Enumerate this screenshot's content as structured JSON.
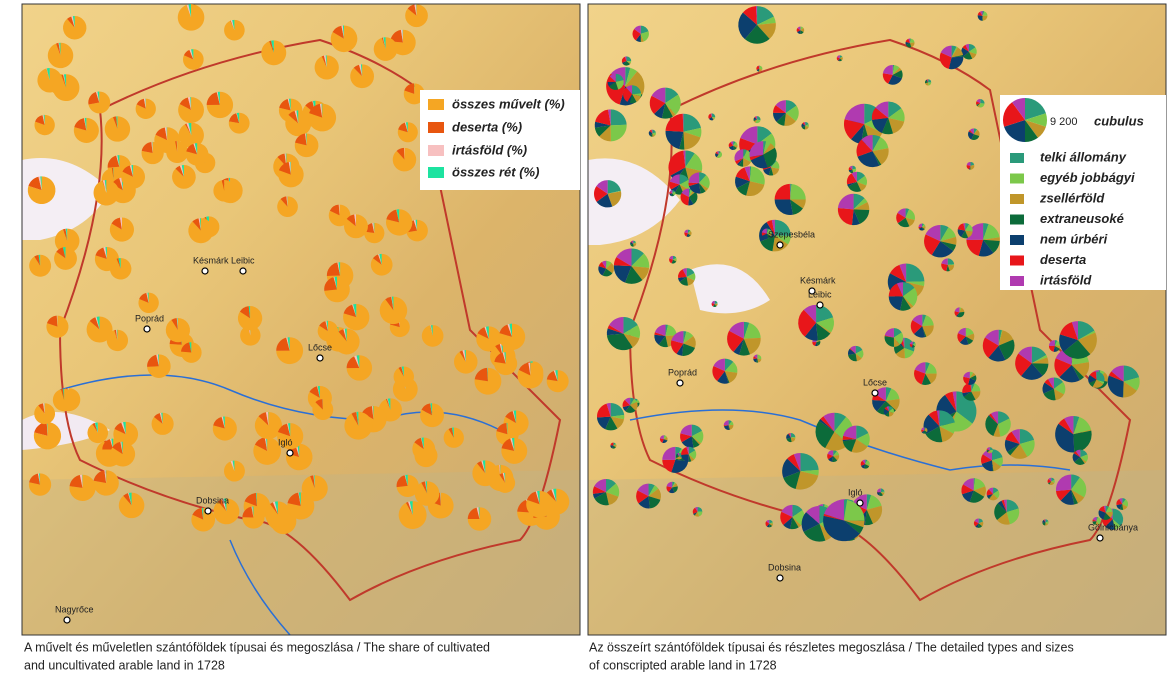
{
  "left_map": {
    "legend": [
      "összes művelt (%)",
      "deserta (%)",
      "irtásföld (%)",
      "összes rét (%)"
    ],
    "towns": [
      "Késmárk",
      "Leibic",
      "Poprád",
      "Lőcse",
      "Igló",
      "Dobsina",
      "Nagyrőce"
    ],
    "caption": [
      "A művelt és műveletlen szántóföldek típusai és megoszlása / The share of cultivated",
      "and uncultivated arable land in 1728"
    ]
  },
  "right_map": {
    "legend_scale": {
      "value": "9 200",
      "unit": "cubulus"
    },
    "legend": [
      "telki állomány",
      "egyéb jobbágyi",
      "zsellérföld",
      "extraneusoké",
      "nem úrbéri",
      "deserta",
      "irtásföld"
    ],
    "towns": [
      "Szepesbéla",
      "Késmárk",
      "Leibic",
      "Poprád",
      "Lőcse",
      "Igló",
      "Dobsina",
      "Gölnicbánya"
    ],
    "caption": [
      "Az összeírt szántóföldek típusai és részletes megoszlása / The detailed types and sizes",
      "of conscripted arable land in 1728"
    ]
  }
}
